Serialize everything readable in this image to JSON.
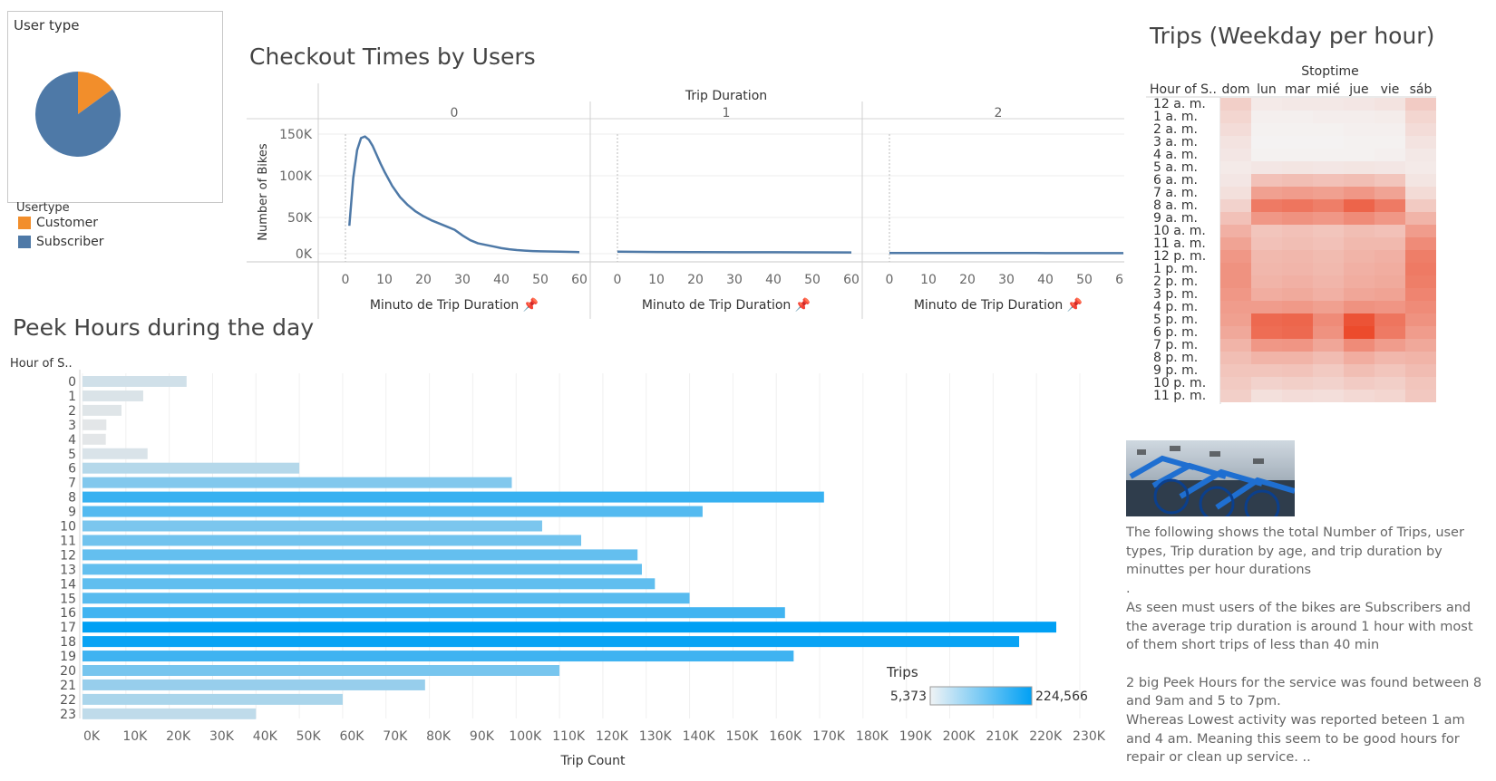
{
  "pie": {
    "title": "User type",
    "legend_title": "Usertype",
    "items": [
      {
        "label": "Customer",
        "value": 15,
        "color": "#f28e2b"
      },
      {
        "label": "Subscriber",
        "value": 85,
        "color": "#4e79a7"
      }
    ]
  },
  "checkout": {
    "title": "Checkout Times by Users",
    "header": "Trip Duration",
    "ylabel": "Number of Bikes",
    "xlabel": "Minuto de Trip Duration",
    "pin": "📌",
    "panels": [
      "0",
      "1",
      "2"
    ]
  },
  "peek": {
    "title": "Peek Hours during the day",
    "row_header": "Hour of S..",
    "xlabel": "Trip Count",
    "legend_title": "Trips",
    "legend_min": "5,373",
    "legend_max": "224,566"
  },
  "heatmap": {
    "title": "Trips (Weekday per hour)",
    "col_header": "Stoptime",
    "row_header": "Hour of S..",
    "days": [
      "dom",
      "lun",
      "mar",
      "mié",
      "jue",
      "vie",
      "sáb"
    ],
    "hours": [
      "12 a. m.",
      "1 a. m.",
      "2 a. m.",
      "3 a. m.",
      "4 a. m.",
      "5 a. m.",
      "6 a. m.",
      "7 a. m.",
      "8 a. m.",
      "9 a. m.",
      "10 a. m.",
      "11 a. m.",
      "12 p. m.",
      "1 p. m.",
      "2 p. m.",
      "3 p. m.",
      "4 p. m.",
      "5 p. m.",
      "6 p. m.",
      "7 p. m.",
      "8 p. m.",
      "9 p. m.",
      "10 p. m.",
      "11 p. m."
    ]
  },
  "description": {
    "p1": "The following shows the total Number of Trips, user types, Trip duration by age, and trip duration by minuttes per hour durations",
    "p2": ".",
    "p3": "As seen must users of the bikes are Subscribers and the average trip duration is around 1 hour with most of them short trips of less than 40 min",
    "p4": "2 big Peek Hours for the service was found between 8 and 9am  and 5 to 7pm.",
    "p5": "Whereas Lowest activity was reported beteen 1 am and 4 am. Meaning this seem to be good hours for repair or clean up service. .."
  },
  "colors": {
    "line": "#4e79a7",
    "bar_low": "#e3e6e8",
    "bar_high": "#00a0f4",
    "heat_low": "#f4f4f4",
    "heat_high": "#ec4b2c"
  },
  "chart_data": [
    {
      "type": "pie",
      "title": "User type",
      "categories": [
        "Customer",
        "Subscriber"
      ],
      "values": [
        15,
        85
      ]
    },
    {
      "type": "line",
      "title": "Checkout Times by Users",
      "xlabel": "Minuto de Trip Duration",
      "ylabel": "Number of Bikes",
      "xlim": [
        0,
        60
      ],
      "ylim": [
        0,
        150000
      ],
      "x_ticks": [
        0,
        10,
        20,
        30,
        40,
        50,
        60
      ],
      "y_ticks": [
        "0K",
        "50K",
        "100K",
        "150K"
      ],
      "series": [
        {
          "name": "0",
          "x": [
            1,
            2,
            3,
            4,
            5,
            6,
            7,
            8,
            9,
            10,
            12,
            14,
            16,
            18,
            20,
            22,
            24,
            26,
            28,
            30,
            32,
            34,
            36,
            38,
            40,
            42,
            44,
            46,
            48,
            50,
            55,
            60
          ],
          "values": [
            35000,
            95000,
            130000,
            145000,
            147000,
            143000,
            135000,
            124000,
            113000,
            103000,
            85000,
            71000,
            61000,
            53000,
            47000,
            42000,
            38000,
            34000,
            30000,
            23000,
            17000,
            13000,
            11000,
            9000,
            7000,
            5500,
            4500,
            3800,
            3300,
            3000,
            2500,
            2000
          ]
        },
        {
          "name": "1",
          "x": [
            0,
            10,
            20,
            30,
            40,
            50,
            60
          ],
          "values": [
            2500,
            2200,
            2000,
            1900,
            1800,
            1700,
            1600
          ]
        },
        {
          "name": "2",
          "x": [
            0,
            10,
            20,
            30,
            40,
            50,
            60
          ],
          "values": [
            900,
            850,
            800,
            800,
            780,
            760,
            750
          ]
        }
      ]
    },
    {
      "type": "bar",
      "title": "Peek Hours during the day",
      "xlabel": "Trip Count",
      "xlim": [
        0,
        230000
      ],
      "x_ticks": [
        "0K",
        "10K",
        "20K",
        "30K",
        "40K",
        "50K",
        "60K",
        "70K",
        "80K",
        "90K",
        "100K",
        "110K",
        "120K",
        "130K",
        "140K",
        "150K",
        "160K",
        "170K",
        "180K",
        "190K",
        "200K",
        "210K",
        "220K",
        "230K"
      ],
      "categories": [
        "0",
        "1",
        "2",
        "3",
        "4",
        "5",
        "6",
        "7",
        "8",
        "9",
        "10",
        "11",
        "12",
        "13",
        "14",
        "15",
        "16",
        "17",
        "18",
        "19",
        "20",
        "21",
        "22",
        "23"
      ],
      "values": [
        24000,
        14000,
        9000,
        5500,
        5373,
        15000,
        50000,
        99000,
        171000,
        143000,
        106000,
        115000,
        128000,
        129000,
        132000,
        140000,
        162000,
        224566,
        216000,
        164000,
        110000,
        79000,
        60000,
        40000
      ]
    },
    {
      "type": "heatmap",
      "title": "Trips (Weekday per hour)",
      "columns": [
        "dom",
        "lun",
        "mar",
        "mié",
        "jue",
        "vie",
        "sáb"
      ],
      "rows": [
        "12 a. m.",
        "1 a. m.",
        "2 a. m.",
        "3 a. m.",
        "4 a. m.",
        "5 a. m.",
        "6 a. m.",
        "7 a. m.",
        "8 a. m.",
        "9 a. m.",
        "10 a. m.",
        "11 a. m.",
        "12 p. m.",
        "1 p. m.",
        "2 p. m.",
        "3 p. m.",
        "4 p. m.",
        "5 p. m.",
        "6 p. m.",
        "7 p. m.",
        "8 p. m.",
        "9 p. m.",
        "10 p. m.",
        "11 p. m."
      ],
      "values": [
        [
          0.22,
          0.06,
          0.07,
          0.07,
          0.08,
          0.1,
          0.24
        ],
        [
          0.18,
          0.03,
          0.03,
          0.04,
          0.04,
          0.05,
          0.18
        ],
        [
          0.14,
          0.02,
          0.02,
          0.02,
          0.03,
          0.03,
          0.14
        ],
        [
          0.1,
          0.01,
          0.01,
          0.01,
          0.02,
          0.02,
          0.1
        ],
        [
          0.08,
          0.02,
          0.02,
          0.02,
          0.02,
          0.03,
          0.07
        ],
        [
          0.06,
          0.08,
          0.09,
          0.08,
          0.09,
          0.08,
          0.06
        ],
        [
          0.08,
          0.3,
          0.32,
          0.3,
          0.32,
          0.28,
          0.09
        ],
        [
          0.12,
          0.5,
          0.52,
          0.5,
          0.55,
          0.48,
          0.15
        ],
        [
          0.2,
          0.72,
          0.75,
          0.7,
          0.85,
          0.72,
          0.25
        ],
        [
          0.3,
          0.55,
          0.58,
          0.55,
          0.62,
          0.55,
          0.38
        ],
        [
          0.4,
          0.28,
          0.3,
          0.28,
          0.32,
          0.3,
          0.52
        ],
        [
          0.48,
          0.3,
          0.32,
          0.3,
          0.35,
          0.35,
          0.62
        ],
        [
          0.55,
          0.35,
          0.36,
          0.34,
          0.38,
          0.4,
          0.7
        ],
        [
          0.58,
          0.36,
          0.37,
          0.35,
          0.4,
          0.42,
          0.72
        ],
        [
          0.58,
          0.38,
          0.4,
          0.37,
          0.42,
          0.44,
          0.7
        ],
        [
          0.55,
          0.42,
          0.44,
          0.4,
          0.46,
          0.48,
          0.66
        ],
        [
          0.52,
          0.52,
          0.54,
          0.5,
          0.58,
          0.56,
          0.62
        ],
        [
          0.5,
          0.82,
          0.84,
          0.62,
          0.95,
          0.75,
          0.58
        ],
        [
          0.45,
          0.8,
          0.82,
          0.58,
          1.0,
          0.72,
          0.52
        ],
        [
          0.38,
          0.55,
          0.56,
          0.46,
          0.62,
          0.52,
          0.45
        ],
        [
          0.32,
          0.38,
          0.38,
          0.33,
          0.42,
          0.36,
          0.38
        ],
        [
          0.28,
          0.28,
          0.29,
          0.25,
          0.32,
          0.28,
          0.33
        ],
        [
          0.25,
          0.2,
          0.22,
          0.2,
          0.24,
          0.22,
          0.28
        ],
        [
          0.22,
          0.12,
          0.14,
          0.13,
          0.16,
          0.18,
          0.26
        ]
      ]
    }
  ]
}
